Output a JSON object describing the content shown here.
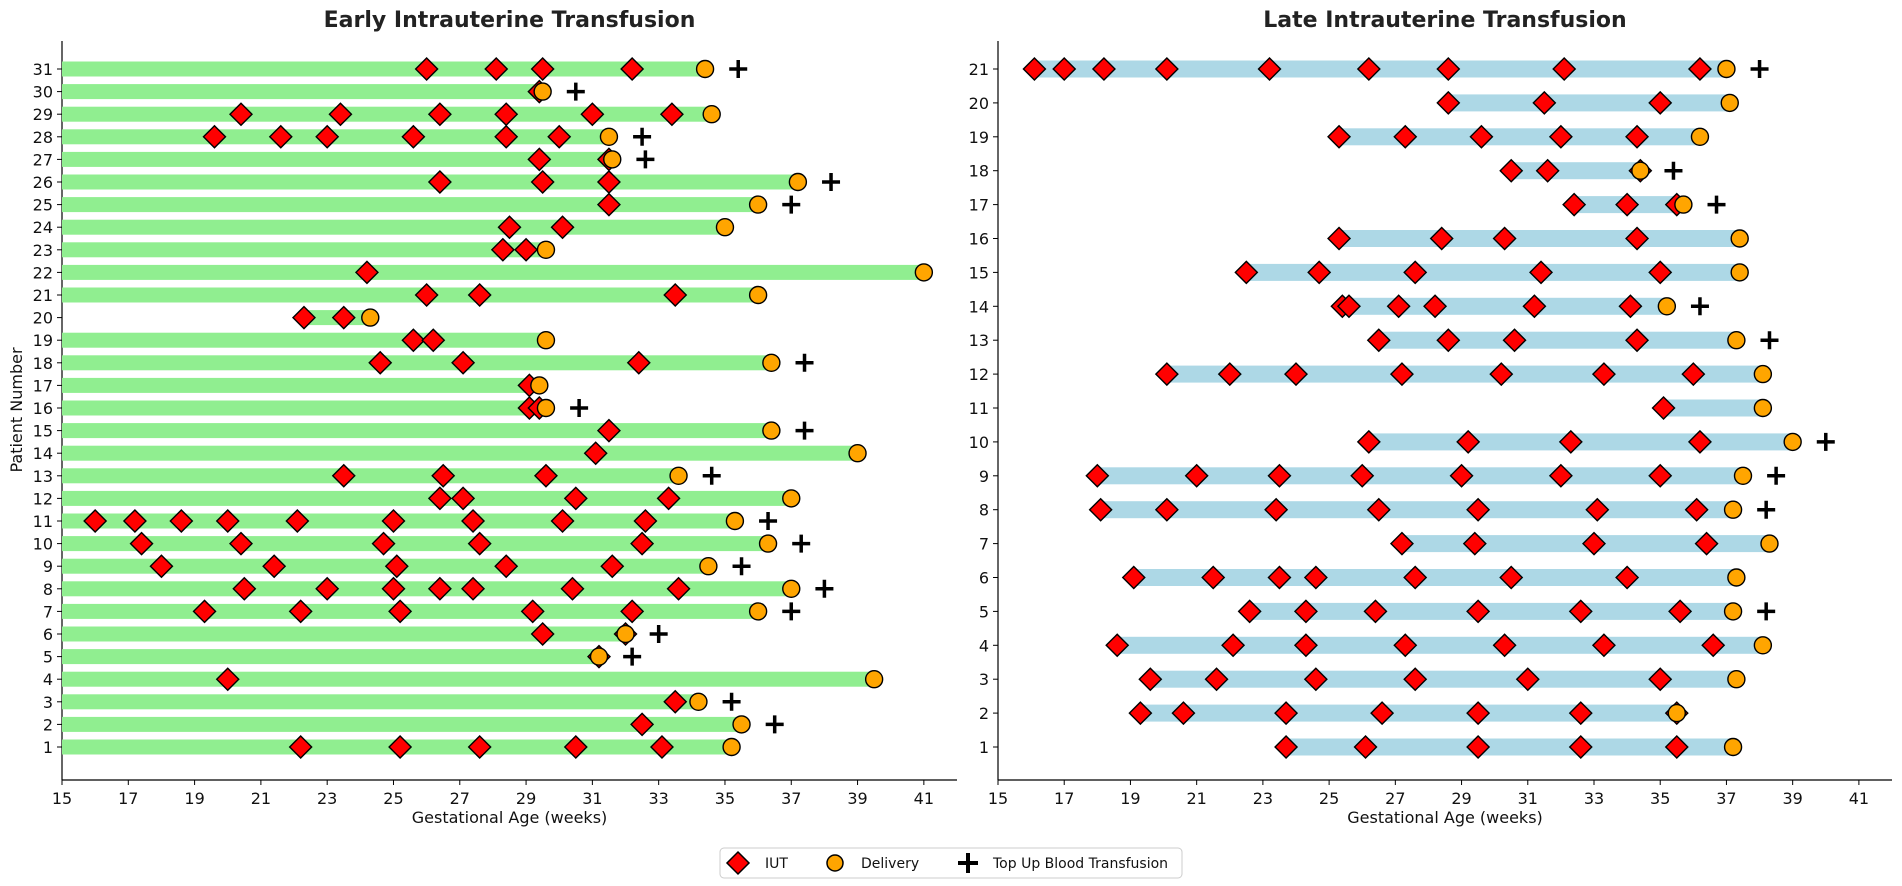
{
  "colors": {
    "early_bar": "#90ee90",
    "late_bar": "#add8e6",
    "iut": "#ff0000",
    "delivery": "#ffa500",
    "topup": "#000000"
  },
  "legend": {
    "iut": "IUT",
    "delivery": "Delivery",
    "topup": "Top Up Blood Transfusion"
  },
  "chart_data": [
    {
      "type": "timeline",
      "title": "Early Intrauterine Transfusion",
      "xlabel": "Gestational Age (weeks)",
      "ylabel": "Patient Number",
      "xlim": [
        15,
        42
      ],
      "xticks": [
        15,
        17,
        19,
        21,
        23,
        25,
        27,
        29,
        31,
        33,
        35,
        37,
        39,
        41
      ],
      "patients": [
        {
          "id": 1,
          "start": 15,
          "end": 35.2,
          "iut": [
            22.2,
            25.2,
            27.6,
            30.5,
            33.1
          ],
          "delivery": 35.2,
          "topup": null
        },
        {
          "id": 2,
          "start": 15,
          "end": 35.5,
          "iut": [
            32.5
          ],
          "delivery": 35.5,
          "topup": 36.5
        },
        {
          "id": 3,
          "start": 15,
          "end": 34.2,
          "iut": [
            33.5
          ],
          "delivery": 34.2,
          "topup": 35.2
        },
        {
          "id": 4,
          "start": 15,
          "end": 39.5,
          "iut": [
            20.0
          ],
          "delivery": 39.5,
          "topup": null
        },
        {
          "id": 5,
          "start": 15,
          "end": 31.2,
          "iut": [
            31.2
          ],
          "delivery": 31.2,
          "topup": 32.2
        },
        {
          "id": 6,
          "start": 15,
          "end": 32.0,
          "iut": [
            29.5,
            32.0
          ],
          "delivery": 32.0,
          "topup": 33.0
        },
        {
          "id": 7,
          "start": 15,
          "end": 36.0,
          "iut": [
            19.3,
            22.2,
            25.2,
            29.2,
            32.2
          ],
          "delivery": 36.0,
          "topup": 37.0
        },
        {
          "id": 8,
          "start": 15,
          "end": 37.0,
          "iut": [
            20.5,
            23.0,
            25.0,
            26.4,
            27.4,
            30.4,
            33.6
          ],
          "delivery": 37.0,
          "topup": 38.0
        },
        {
          "id": 9,
          "start": 15,
          "end": 34.5,
          "iut": [
            18.0,
            21.4,
            25.1,
            28.4,
            31.6
          ],
          "delivery": 34.5,
          "topup": 35.5
        },
        {
          "id": 10,
          "start": 15,
          "end": 36.3,
          "iut": [
            17.4,
            20.4,
            24.7,
            27.6,
            32.5
          ],
          "delivery": 36.3,
          "topup": 37.3
        },
        {
          "id": 11,
          "start": 15,
          "end": 35.3,
          "iut": [
            16.0,
            17.2,
            18.6,
            20.0,
            22.1,
            25.0,
            27.4,
            30.1,
            32.6
          ],
          "delivery": 35.3,
          "topup": 36.3
        },
        {
          "id": 12,
          "start": 15,
          "end": 37.0,
          "iut": [
            26.4,
            27.1,
            30.5,
            33.3
          ],
          "delivery": 37.0,
          "topup": null
        },
        {
          "id": 13,
          "start": 15,
          "end": 33.6,
          "iut": [
            23.5,
            26.5,
            29.6
          ],
          "delivery": 33.6,
          "topup": 34.6
        },
        {
          "id": 14,
          "start": 15,
          "end": 39.0,
          "iut": [
            31.1
          ],
          "delivery": 39.0,
          "topup": null
        },
        {
          "id": 15,
          "start": 15,
          "end": 36.4,
          "iut": [
            31.5
          ],
          "delivery": 36.4,
          "topup": 37.4
        },
        {
          "id": 16,
          "start": 15,
          "end": 29.6,
          "iut": [
            29.1,
            29.4
          ],
          "delivery": 29.6,
          "topup": 30.6
        },
        {
          "id": 17,
          "start": 15,
          "end": 29.4,
          "iut": [
            29.1
          ],
          "delivery": 29.4,
          "topup": null
        },
        {
          "id": 18,
          "start": 15,
          "end": 36.4,
          "iut": [
            24.6,
            27.1,
            32.4
          ],
          "delivery": 36.4,
          "topup": 37.4
        },
        {
          "id": 19,
          "start": 15,
          "end": 29.6,
          "iut": [
            25.6,
            26.2
          ],
          "delivery": 29.6,
          "topup": null
        },
        {
          "id": 20,
          "start": 22.2,
          "end": 24.3,
          "iut": [
            22.3,
            23.5
          ],
          "delivery": 24.3,
          "topup": null
        },
        {
          "id": 21,
          "start": 15,
          "end": 36.0,
          "iut": [
            26.0,
            27.6,
            33.5
          ],
          "delivery": 36.0,
          "topup": null
        },
        {
          "id": 22,
          "start": 15,
          "end": 41.0,
          "iut": [
            24.2
          ],
          "delivery": 41.0,
          "topup": null
        },
        {
          "id": 23,
          "start": 15,
          "end": 29.6,
          "iut": [
            28.3,
            29.0
          ],
          "delivery": 29.6,
          "topup": null
        },
        {
          "id": 24,
          "start": 15,
          "end": 35.0,
          "iut": [
            28.5,
            30.1
          ],
          "delivery": 35.0,
          "topup": null
        },
        {
          "id": 25,
          "start": 15,
          "end": 36.0,
          "iut": [
            31.5
          ],
          "delivery": 36.0,
          "topup": 37.0
        },
        {
          "id": 26,
          "start": 15,
          "end": 37.2,
          "iut": [
            26.4,
            29.5,
            31.5
          ],
          "delivery": 37.2,
          "topup": 38.2
        },
        {
          "id": 27,
          "start": 15,
          "end": 31.6,
          "iut": [
            29.4,
            31.5
          ],
          "delivery": 31.6,
          "topup": 32.6
        },
        {
          "id": 28,
          "start": 15,
          "end": 31.5,
          "iut": [
            19.6,
            21.6,
            23.0,
            25.6,
            28.4,
            30.0
          ],
          "delivery": 31.5,
          "topup": 32.5
        },
        {
          "id": 29,
          "start": 15,
          "end": 34.6,
          "iut": [
            20.4,
            23.4,
            26.4,
            28.4,
            31.0,
            33.4
          ],
          "delivery": 34.6,
          "topup": null
        },
        {
          "id": 30,
          "start": 15,
          "end": 29.5,
          "iut": [
            29.4
          ],
          "delivery": 29.5,
          "topup": 30.5
        },
        {
          "id": 31,
          "start": 15,
          "end": 34.4,
          "iut": [
            26.0,
            28.1,
            29.5,
            32.2
          ],
          "delivery": 34.4,
          "topup": 35.4
        }
      ]
    },
    {
      "type": "timeline",
      "title": "Late Intrauterine Transfusion",
      "xlabel": "Gestational Age (weeks)",
      "ylabel": "",
      "xlim": [
        15,
        42
      ],
      "xticks": [
        15,
        17,
        19,
        21,
        23,
        25,
        27,
        29,
        31,
        33,
        35,
        37,
        39,
        41
      ],
      "patients": [
        {
          "id": 1,
          "start": 23.7,
          "end": 37.2,
          "iut": [
            23.7,
            26.1,
            29.5,
            32.6,
            35.5
          ],
          "delivery": 37.2,
          "topup": null
        },
        {
          "id": 2,
          "start": 19.3,
          "end": 35.5,
          "iut": [
            19.3,
            20.6,
            23.7,
            26.6,
            29.5,
            32.6,
            35.5
          ],
          "delivery": 35.5,
          "topup": null
        },
        {
          "id": 3,
          "start": 19.6,
          "end": 37.3,
          "iut": [
            19.6,
            21.6,
            24.6,
            27.6,
            31.0,
            35.0
          ],
          "delivery": 37.3,
          "topup": null
        },
        {
          "id": 4,
          "start": 18.6,
          "end": 38.1,
          "iut": [
            18.6,
            22.1,
            24.3,
            27.3,
            30.3,
            33.3,
            36.6
          ],
          "delivery": 38.1,
          "topup": null
        },
        {
          "id": 5,
          "start": 22.6,
          "end": 37.2,
          "iut": [
            22.6,
            24.3,
            26.4,
            29.5,
            32.6,
            35.6
          ],
          "delivery": 37.2,
          "topup": 38.2
        },
        {
          "id": 6,
          "start": 19.1,
          "end": 37.3,
          "iut": [
            19.1,
            21.5,
            23.5,
            24.6,
            27.6,
            30.5,
            34.0
          ],
          "delivery": 37.3,
          "topup": null
        },
        {
          "id": 7,
          "start": 27.2,
          "end": 38.3,
          "iut": [
            27.2,
            29.4,
            33.0,
            36.4
          ],
          "delivery": 38.3,
          "topup": null
        },
        {
          "id": 8,
          "start": 18.1,
          "end": 37.2,
          "iut": [
            18.1,
            20.1,
            23.4,
            26.5,
            29.5,
            33.1,
            36.1
          ],
          "delivery": 37.2,
          "topup": 38.2
        },
        {
          "id": 9,
          "start": 18.0,
          "end": 37.5,
          "iut": [
            18.0,
            21.0,
            23.5,
            26.0,
            29.0,
            32.0,
            35.0
          ],
          "delivery": 37.5,
          "topup": 38.5
        },
        {
          "id": 10,
          "start": 26.2,
          "end": 39.0,
          "iut": [
            26.2,
            29.2,
            32.3,
            36.2
          ],
          "delivery": 39.0,
          "topup": 40.0
        },
        {
          "id": 11,
          "start": 35.1,
          "end": 38.1,
          "iut": [
            35.1
          ],
          "delivery": 38.1,
          "topup": null
        },
        {
          "id": 12,
          "start": 20.1,
          "end": 38.1,
          "iut": [
            20.1,
            22.0,
            24.0,
            27.2,
            30.2,
            33.3,
            36.0
          ],
          "delivery": 38.1,
          "topup": null
        },
        {
          "id": 13,
          "start": 26.5,
          "end": 37.3,
          "iut": [
            26.5,
            28.6,
            30.6,
            34.3
          ],
          "delivery": 37.3,
          "topup": 38.3
        },
        {
          "id": 14,
          "start": 25.4,
          "end": 35.2,
          "iut": [
            25.4,
            25.6,
            27.1,
            28.2,
            31.2,
            34.1
          ],
          "delivery": 35.2,
          "topup": 36.2
        },
        {
          "id": 15,
          "start": 22.5,
          "end": 37.4,
          "iut": [
            22.5,
            24.7,
            27.6,
            31.4,
            35.0
          ],
          "delivery": 37.4,
          "topup": null
        },
        {
          "id": 16,
          "start": 25.3,
          "end": 37.4,
          "iut": [
            25.3,
            28.4,
            30.3,
            34.3
          ],
          "delivery": 37.4,
          "topup": null
        },
        {
          "id": 17,
          "start": 32.4,
          "end": 35.7,
          "iut": [
            32.4,
            34.0,
            35.5
          ],
          "delivery": 35.7,
          "topup": 36.7
        },
        {
          "id": 18,
          "start": 30.5,
          "end": 34.4,
          "iut": [
            30.5,
            31.6,
            34.4
          ],
          "delivery": 34.4,
          "topup": 35.4
        },
        {
          "id": 19,
          "start": 25.3,
          "end": 36.2,
          "iut": [
            25.3,
            27.3,
            29.6,
            32.0,
            34.3
          ],
          "delivery": 36.2,
          "topup": null
        },
        {
          "id": 20,
          "start": 28.6,
          "end": 37.1,
          "iut": [
            28.6,
            31.5,
            35.0
          ],
          "delivery": 37.1,
          "topup": null
        },
        {
          "id": 21,
          "start": 16.1,
          "end": 37.0,
          "iut": [
            16.1,
            17.0,
            18.2,
            20.1,
            23.2,
            26.2,
            28.6,
            32.1,
            36.2
          ],
          "delivery": 37.0,
          "topup": 38.0
        }
      ]
    }
  ]
}
